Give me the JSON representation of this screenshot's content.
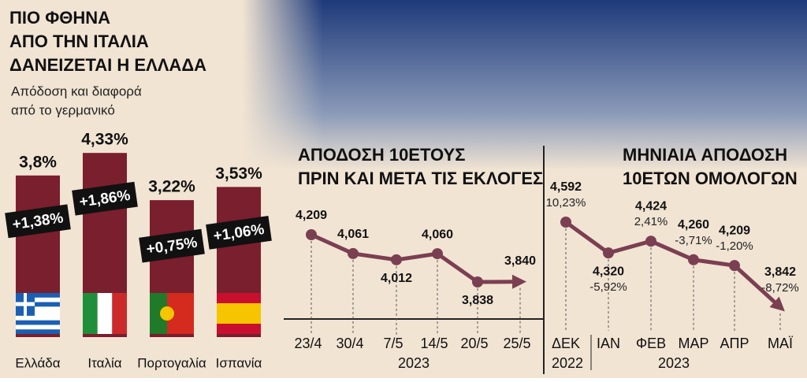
{
  "chart_data": [
    {
      "type": "bar",
      "title": [
        "ΠΙΟ ΦΘΗΝΑ",
        "ΑΠΟ ΤΗΝ ΙΤΑΛΙΑ",
        "ΔΑΝΕΙΖΕΤΑΙ Η ΕΛΛΑΔΑ"
      ],
      "subtitle": [
        "Απόδοση και διαφορά",
        "από το γερμανικό"
      ],
      "categories": [
        "Ελλάδα",
        "Ιταλία",
        "Πορτογαλία",
        "Ισπανία"
      ],
      "values": [
        3.8,
        4.33,
        3.22,
        3.53
      ],
      "value_labels": [
        "3,8%",
        "4,33%",
        "3,22%",
        "3,53%"
      ],
      "spread_values": [
        1.38,
        1.86,
        0.75,
        1.06
      ],
      "spread_labels": [
        "+1,38%",
        "+1,86%",
        "+0,75%",
        "+1,06%"
      ],
      "color": "#7a1f2e"
    },
    {
      "type": "line",
      "title": [
        "ΑΠΟΔΟΣΗ 10ΕΤΟΥΣ",
        "ΠΡΙΝ ΚΑΙ ΜΕΤΑ ΤΙΣ ΕΚΛΟΓΕΣ"
      ],
      "categories": [
        "23/4",
        "30/4",
        "7/5",
        "14/5",
        "20/5",
        "25/5"
      ],
      "xlabel": "2023",
      "values": [
        4.209,
        4.061,
        4.012,
        4.06,
        3.838,
        3.84
      ],
      "value_labels": [
        "4,209",
        "4,061",
        "4,012",
        "4,060",
        "3,838",
        "3,840"
      ],
      "color": "#7b3f52"
    },
    {
      "type": "line",
      "title": [
        "ΜΗΝΙΑΙΑ ΑΠΟΔΟΣΗ",
        "10ΕΤΩΝ ΟΜΟΛΟΓΩΝ"
      ],
      "categories": [
        "ΔΕΚ",
        "ΙΑΝ",
        "ΦΕΒ",
        "ΜΑΡ",
        "ΑΠΡ",
        "ΜΑΪ"
      ],
      "year_labels": [
        "2022",
        "2023"
      ],
      "values": [
        4.592,
        4.32,
        4.424,
        4.26,
        4.209,
        3.842
      ],
      "value_labels": [
        "4,592",
        "4,320",
        "4,424",
        "4,260",
        "4,209",
        "3,842"
      ],
      "changes": [
        10.23,
        -5.92,
        2.41,
        -3.71,
        -1.2,
        -8.72
      ],
      "change_labels": [
        "10,23%",
        "-5,92%",
        "2,41%",
        "-3,71%",
        "-1,20%",
        "-8,72%"
      ],
      "color": "#7b3f52"
    }
  ]
}
